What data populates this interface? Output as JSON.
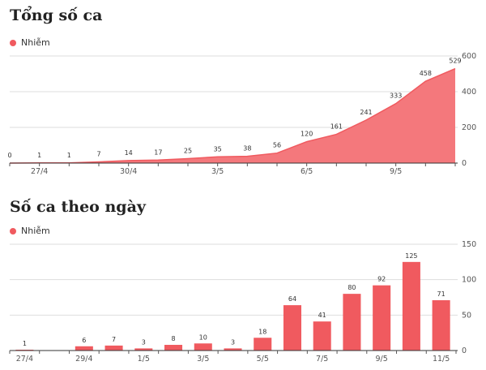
{
  "accent_color": "#f05a5f",
  "area_fill": "#f4787c",
  "chart_data": [
    {
      "type": "area",
      "title": "Tổng số ca",
      "legend": [
        "Nhiễm"
      ],
      "series": [
        {
          "name": "Nhiễm",
          "values": [
            0,
            1,
            1,
            7,
            14,
            17,
            25,
            35,
            38,
            56,
            120,
            161,
            241,
            333,
            458,
            529
          ]
        }
      ],
      "x_tick_labels": [
        "27/4",
        "30/4",
        "3/5",
        "6/5",
        "9/5"
      ],
      "y_tick_labels": [
        "0",
        "200",
        "400",
        "600"
      ],
      "ylim": [
        0,
        600
      ]
    },
    {
      "type": "bar",
      "title": "Số ca theo ngày",
      "legend": [
        "Nhiễm"
      ],
      "series": [
        {
          "name": "Nhiễm",
          "values": [
            1,
            0,
            6,
            7,
            3,
            8,
            10,
            3,
            18,
            64,
            41,
            80,
            92,
            125,
            71
          ]
        }
      ],
      "x_tick_labels": [
        "27/4",
        "29/4",
        "1/5",
        "3/5",
        "5/5",
        "7/5",
        "9/5",
        "11/5"
      ],
      "y_tick_labels": [
        "0",
        "50",
        "100",
        "150"
      ],
      "ylim": [
        0,
        150
      ]
    }
  ]
}
